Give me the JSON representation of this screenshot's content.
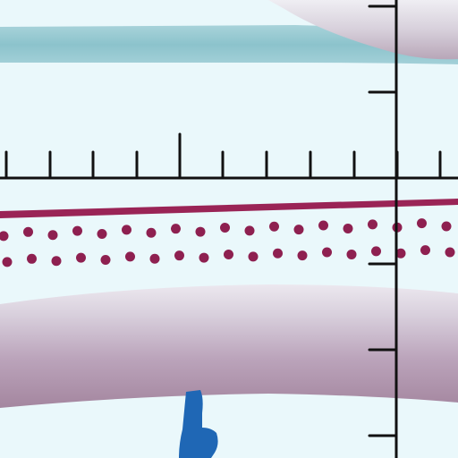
{
  "colors": {
    "background": "#eaf8fb",
    "teal_band": "#8fc6cf",
    "teal_band_light": "#bfe0e6",
    "maroon": "#9a2456",
    "dot": "#8e2050",
    "mauve_light": "#d6cfdc",
    "mauve_mid": "#b9a3b9",
    "mauve_dark": "#9f7f9c",
    "axis": "#111111",
    "blue_shape": "#1f67b5"
  },
  "elements": {
    "horizontal_axis": "ruler-axis-horizontal",
    "vertical_axis": "ruler-axis-vertical",
    "dot_band": "dotted-band",
    "stripe": "maroon-stripe",
    "teal_band": "teal-band",
    "mauve_blob_top": "mauve-blob-top",
    "mauve_band": "mauve-band",
    "blue_shape": "blue-shape"
  }
}
